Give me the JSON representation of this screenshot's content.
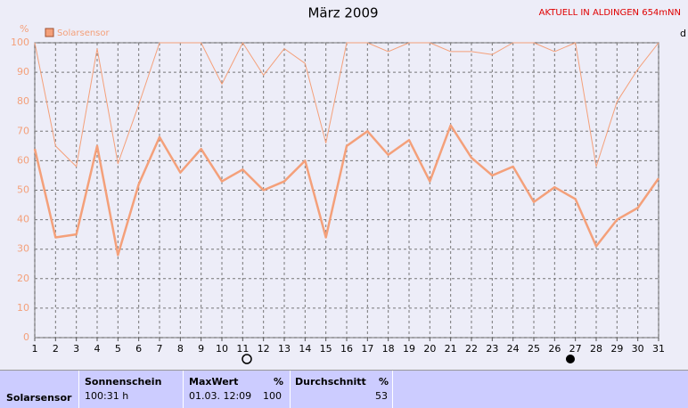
{
  "chart_data": {
    "type": "line",
    "title": "März 2009",
    "banner": "AKTUELL IN ALDINGEN 654mNN",
    "y_label": "%",
    "y2_label": "d",
    "x": [
      1,
      2,
      3,
      4,
      5,
      6,
      7,
      8,
      9,
      10,
      11,
      12,
      13,
      14,
      15,
      16,
      17,
      18,
      19,
      20,
      21,
      22,
      23,
      24,
      25,
      26,
      27,
      28,
      29,
      30,
      31
    ],
    "xlim": [
      1,
      31
    ],
    "ylim": [
      0,
      100
    ],
    "yticks": [
      0,
      10,
      20,
      30,
      40,
      50,
      60,
      70,
      80,
      90,
      100
    ],
    "grid": true,
    "series": [
      {
        "color": "#f4a07a",
        "width": 1,
        "values": [
          100,
          65,
          58,
          98,
          59,
          79,
          100,
          100,
          100,
          86,
          100,
          89,
          98,
          93,
          66,
          100,
          100,
          97,
          100,
          100,
          97,
          97,
          96,
          100,
          100,
          97,
          100,
          58,
          80,
          91,
          100
        ]
      },
      {
        "name": "Solarsensor",
        "color": "#f4a07a",
        "width": 2.5,
        "values": [
          64,
          34,
          35,
          65,
          28,
          52,
          68,
          56,
          64,
          53,
          57,
          50,
          53,
          60,
          34,
          65,
          70,
          62,
          67,
          53,
          72,
          61,
          55,
          58,
          46,
          51,
          47,
          31,
          40,
          44,
          54
        ]
      }
    ]
  },
  "table": {
    "header": [
      "Sonnenschein",
      "MaxWert",
      "%",
      "Durchschnitt",
      "%"
    ],
    "rows": [
      [
        "Solarsensor",
        "100:31 h",
        "01.03. 12:09",
        "100",
        "53"
      ]
    ]
  }
}
